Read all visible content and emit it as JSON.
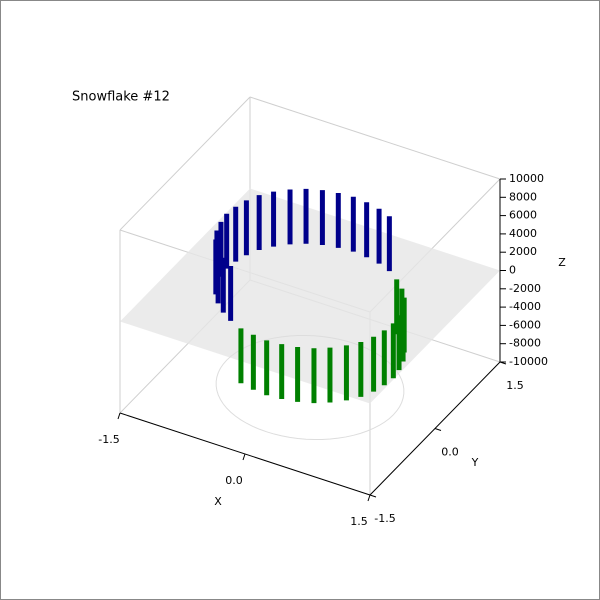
{
  "chart_data": {
    "type": "stem3d",
    "title": "Snowflake #12",
    "x_label": "X",
    "y_label": "Y",
    "z_label": "Z",
    "xlim": [
      -1.5,
      1.5
    ],
    "ylim": [
      -1.5,
      1.5
    ],
    "zlim": [
      -10000,
      10000
    ],
    "xticks": [
      -1.5,
      {
        "value": 0,
        "label": "0.0"
      },
      1.5
    ],
    "yticks": [
      -1.5,
      {
        "value": 0,
        "label": "0.0"
      },
      1.5
    ],
    "zticks": [
      -10000,
      -8000,
      -6000,
      -4000,
      -2000,
      0,
      2000,
      4000,
      6000,
      8000,
      10000
    ],
    "x": [
      1,
      0.98,
      0.94,
      0.87,
      0.77,
      0.64,
      0.5,
      0.34,
      0.17,
      0,
      -0.17,
      -0.34,
      -0.5,
      -0.64,
      -0.77,
      -0.87,
      -0.94,
      -0.98,
      -1,
      -0.98,
      -0.94,
      -0.87,
      -0.77,
      -0.64,
      -0.5,
      -0.34,
      -0.17,
      0,
      0.17,
      0.34,
      0.5,
      0.64,
      0.77,
      0.87,
      0.94,
      0.98
    ],
    "y": [
      0,
      0.17,
      0.34,
      0.5,
      0.64,
      0.77,
      0.87,
      0.94,
      0.98,
      1,
      0.98,
      0.94,
      0.87,
      0.77,
      0.64,
      0.5,
      0.34,
      0.17,
      0,
      -0.17,
      -0.34,
      -0.5,
      -0.64,
      -0.77,
      -0.87,
      -0.94,
      -0.98,
      -1,
      -0.98,
      -0.94,
      -0.87,
      -0.77,
      -0.64,
      -0.5,
      -0.34,
      -0.17
    ],
    "series": [
      {
        "color": "#00008b",
        "values": [
          null,
          null,
          null,
          null,
          null,
          null,
          6000,
          6000,
          6000,
          6000,
          6000,
          6000,
          6000,
          6000,
          6000,
          6000,
          6000,
          6000,
          6000,
          6000,
          6000,
          6000,
          6000,
          6000,
          6000,
          null,
          null,
          null,
          null,
          null,
          null,
          null,
          null,
          null,
          null,
          null
        ]
      },
      {
        "color": "#008000",
        "values": [
          -6000,
          -6000,
          -6000,
          -6000,
          -6000,
          -6000,
          null,
          null,
          null,
          null,
          null,
          null,
          null,
          null,
          null,
          null,
          null,
          null,
          null,
          null,
          null,
          null,
          null,
          null,
          null,
          -6000,
          -6000,
          -6000,
          -6000,
          -6000,
          -6000,
          -6000,
          -6000,
          -6000,
          -6000,
          -6000
        ]
      }
    ]
  }
}
